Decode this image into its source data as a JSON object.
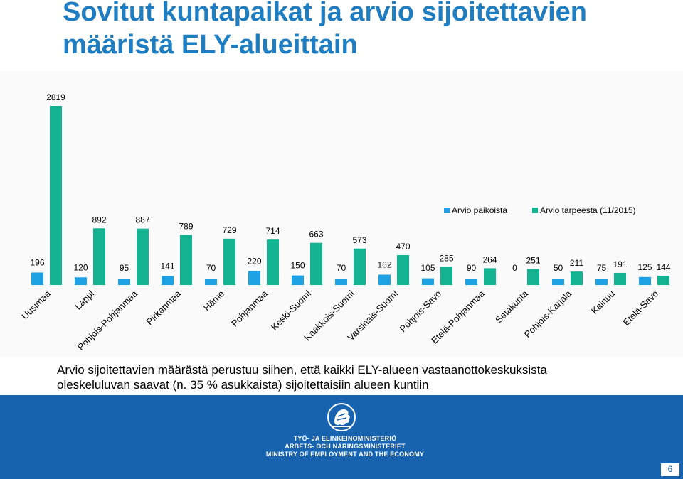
{
  "slide": {
    "title": "Sovitut kuntapaikat ja arvio sijoitettavien määristä ELY-alueittain",
    "footnote_lines": [
      "Arvio sijoitettavien määrästä perustuu siihen, että kaikki ELY-alueen vastaanottokeskuksista",
      "oleskeluluvan saavat (n. 35 % asukkaista) sijoitettaisiin alueen kuntiin"
    ],
    "ministry_lines": [
      "TYÖ- JA ELINKEINOMINISTERIÖ",
      "ARBETS- OCH NÄRINGSMINISTERIET",
      "MINISTRY OF EMPLOYMENT AND THE ECONOMY"
    ],
    "page_number": "6"
  },
  "chart_data": {
    "type": "bar",
    "categories": [
      "Uusimaa",
      "Lappi",
      "Pohjois-Pohjanmaa",
      "Pirkanmaa",
      "Häme",
      "Pohjanmaa",
      "Keski-Suomi",
      "Kaakkois-Suomi",
      "Varsinais-Suomi",
      "Pohjois-Savo",
      "Etelä-Pohjanmaa",
      "Satakunta",
      "Pohjois-Karjala",
      "Kainuu",
      "Etelä-Savo"
    ],
    "series": [
      {
        "name": "Arvio paikoista",
        "color": "#1ea1e5",
        "values": [
          196,
          120,
          95,
          141,
          70,
          220,
          150,
          70,
          162,
          105,
          90,
          0,
          50,
          75,
          125
        ]
      },
      {
        "name": "Arvio tarpeesta (11/2015)",
        "color": "#14b391",
        "values": [
          2819,
          892,
          887,
          789,
          729,
          714,
          663,
          573,
          470,
          285,
          264,
          251,
          211,
          191,
          144
        ]
      }
    ],
    "title": "",
    "xlabel": "",
    "ylabel": "",
    "ylim": [
      0,
      2819
    ],
    "grid": false,
    "legend_position": "top-right"
  },
  "colors": {
    "title": "#1f7dc1",
    "footer": "#1763b0"
  }
}
